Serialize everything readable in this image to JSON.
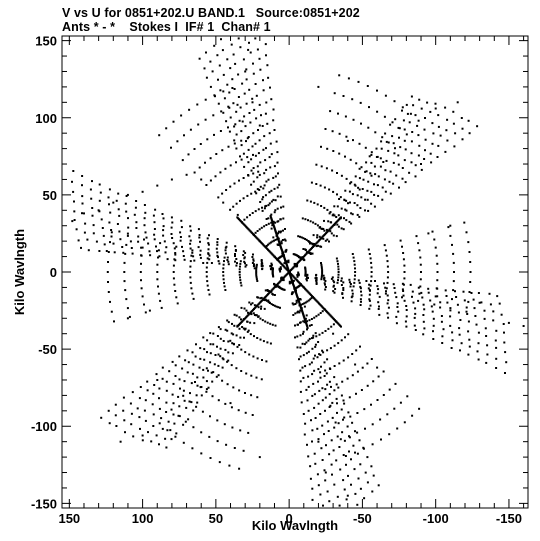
{
  "header": {
    "line1": "V vs U for 0851+202.U BAND.1   Source:0851+202",
    "line2": "Ants * - *    Stokes I  IF# 1  Chan# 1"
  },
  "chart_data": {
    "type": "scatter",
    "xlabel": "Kilo Wavlngth",
    "ylabel": "Kilo Wavlngth",
    "xlim": [
      155,
      -163
    ],
    "ylim": [
      -153,
      153
    ],
    "x_axis_reversed": true,
    "x_ticks": [
      150,
      100,
      50,
      0,
      -50,
      -100,
      -150
    ],
    "x_tick_labels": [
      "150",
      "100",
      "50",
      "0",
      "-50",
      "-100",
      "-150"
    ],
    "y_ticks": [
      -150,
      -100,
      -50,
      0,
      50,
      100,
      150
    ],
    "y_tick_labels": [
      "-150",
      "-100",
      "-50",
      "0",
      "50",
      "100",
      "150"
    ],
    "grid": false,
    "marker_color": "#000000",
    "pattern": "six-armed uv-coverage (snapshot VLA), arms at approx 30, 90, 150, 210, 270, 330 degrees, conjugate-symmetric",
    "sample_points": [
      {
        "x": 148,
        "y": 33
      },
      {
        "x": 140,
        "y": 38
      },
      {
        "x": 130,
        "y": 40
      },
      {
        "x": 120,
        "y": 45
      },
      {
        "x": 110,
        "y": 50
      },
      {
        "x": 100,
        "y": 52
      },
      {
        "x": 90,
        "y": 56
      },
      {
        "x": 80,
        "y": 60
      },
      {
        "x": 70,
        "y": 63
      },
      {
        "x": 60,
        "y": 60
      },
      {
        "x": 45,
        "y": 45
      },
      {
        "x": 35,
        "y": 37
      },
      {
        "x": 20,
        "y": 20
      },
      {
        "x": 10,
        "y": 10
      },
      {
        "x": 0,
        "y": 0
      },
      {
        "x": 28,
        "y": 144
      },
      {
        "x": 30,
        "y": 130
      },
      {
        "x": 25,
        "y": 110
      },
      {
        "x": 20,
        "y": 95
      },
      {
        "x": -20,
        "y": 120
      },
      {
        "x": -40,
        "y": 85
      },
      {
        "x": -55,
        "y": 75
      },
      {
        "x": -90,
        "y": 70
      },
      {
        "x": -100,
        "y": 106
      },
      {
        "x": -115,
        "y": 110
      },
      {
        "x": -95,
        "y": 25
      },
      {
        "x": -110,
        "y": 30
      },
      {
        "x": -130,
        "y": -20
      },
      {
        "x": -150,
        "y": -33
      },
      {
        "x": -160,
        "y": -35
      },
      {
        "x": -10,
        "y": -10
      },
      {
        "x": -30,
        "y": -40
      },
      {
        "x": -45,
        "y": -60
      },
      {
        "x": -60,
        "y": -62
      },
      {
        "x": -40,
        "y": -145
      },
      {
        "x": -25,
        "y": -130
      },
      {
        "x": -20,
        "y": -110
      },
      {
        "x": 20,
        "y": -120
      },
      {
        "x": 40,
        "y": -85
      },
      {
        "x": 55,
        "y": -75
      },
      {
        "x": 90,
        "y": -70
      },
      {
        "x": 100,
        "y": -106
      },
      {
        "x": 115,
        "y": -110
      },
      {
        "x": 95,
        "y": -25
      },
      {
        "x": 110,
        "y": -30
      }
    ]
  }
}
